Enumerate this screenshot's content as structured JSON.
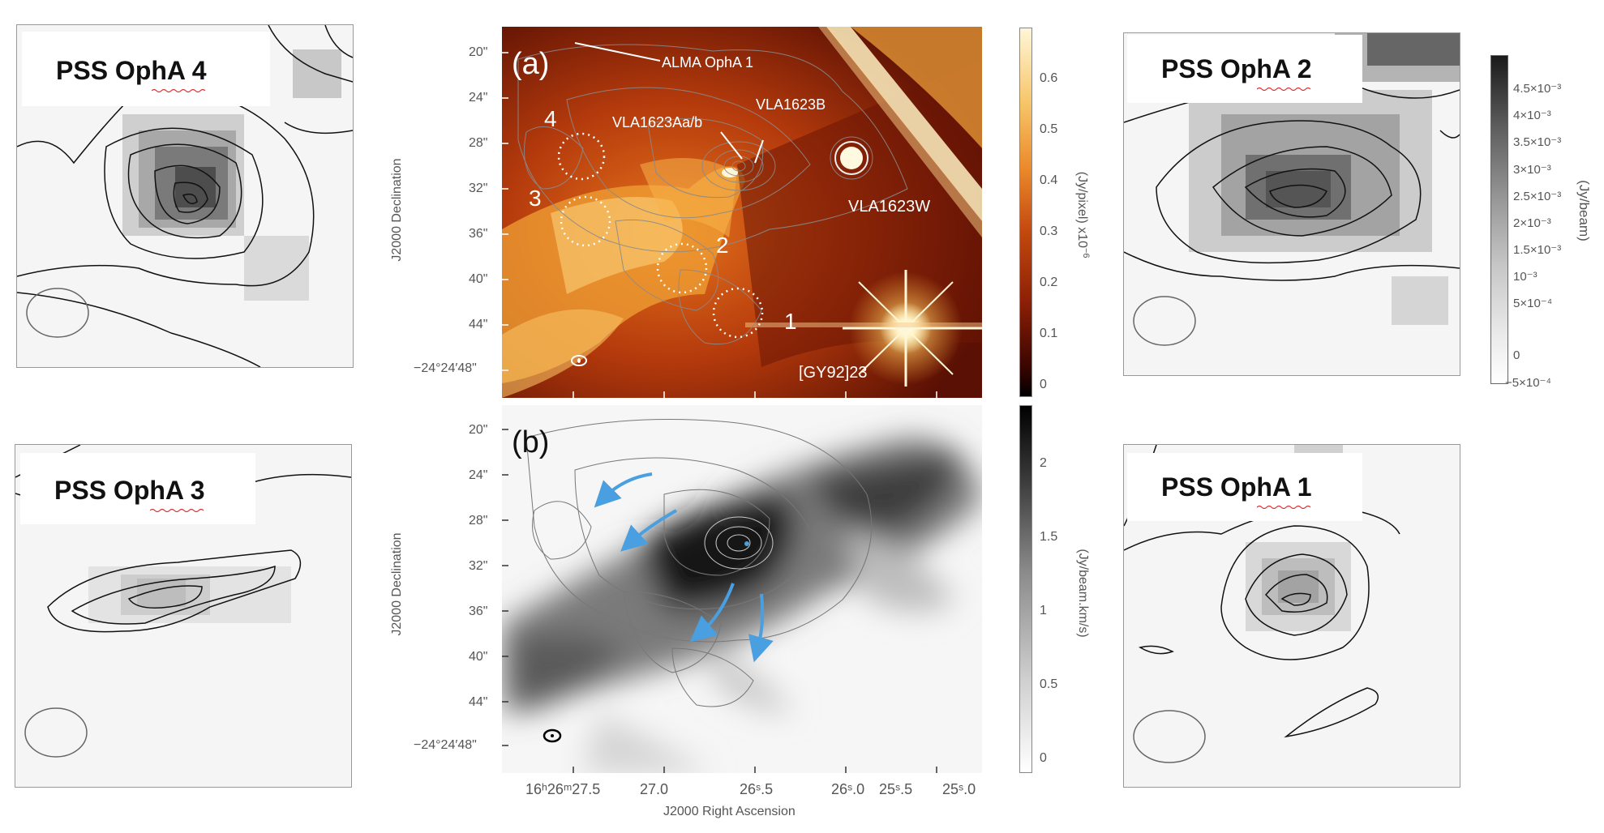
{
  "figure": {
    "panel_a": {
      "label": "(a)",
      "annotations": {
        "alma": "ALMA OphA 1",
        "vla_aab": "VLA1623Aa/b",
        "vla_b": "VLA1623B",
        "vla_w": "VLA1623W",
        "gy": "[GY92]23",
        "n1": "1",
        "n2": "2",
        "n3": "3",
        "n4": "4"
      },
      "colorbar": {
        "ticks": [
          "0.6",
          "0.5",
          "0.4",
          "0.3",
          "0.2",
          "0.1",
          "0"
        ],
        "label": "(Jy/pixel)  x10",
        "exp": "−6"
      },
      "colors": {
        "dark": "#3a0500",
        "mid": "#c4490f",
        "bright": "#f7b23a",
        "peak": "#fff6d8"
      }
    },
    "panel_b": {
      "label": "(b)",
      "colorbar": {
        "ticks": [
          "2",
          "1.5",
          "1",
          "0.5",
          "0"
        ],
        "label": "(Jy/beam.km/s)"
      },
      "arrow_color": "#4a9fe0"
    },
    "shared_axes": {
      "dec_ticks": [
        "20\"",
        "24\"",
        "28\"",
        "32\"",
        "36\"",
        "40\"",
        "44\"",
        "−24°24′48\""
      ],
      "ra_ticks": [
        "16h26m27s.5",
        "27s.0",
        "26s.5",
        "26s.0",
        "25s.5",
        "25s.0"
      ],
      "ra_tick_display": [
        "16ʰ26ᵐ27.5",
        "27.0",
        "26ˢ.5",
        "26ˢ.0",
        "25ˢ.5",
        "25ˢ.0"
      ],
      "xlabel": "J2000 Right Ascension",
      "ylabel": "J2000 Declination"
    },
    "insets": [
      {
        "title": "PSS OphA 4"
      },
      {
        "title": "PSS OphA 3"
      },
      {
        "title": "PSS OphA 2"
      },
      {
        "title": "PSS OphA 1"
      }
    ],
    "gray_colorbar": {
      "ticks": [
        "4.5×10⁻³",
        "4×10⁻³",
        "3.5×10⁻³",
        "3×10⁻³",
        "2.5×10⁻³",
        "2×10⁻³",
        "1.5×10⁻³",
        "10⁻³",
        "5×10⁻⁴",
        "0",
        "−5×10⁻⁴"
      ],
      "label": "(Jy/beam)"
    }
  }
}
